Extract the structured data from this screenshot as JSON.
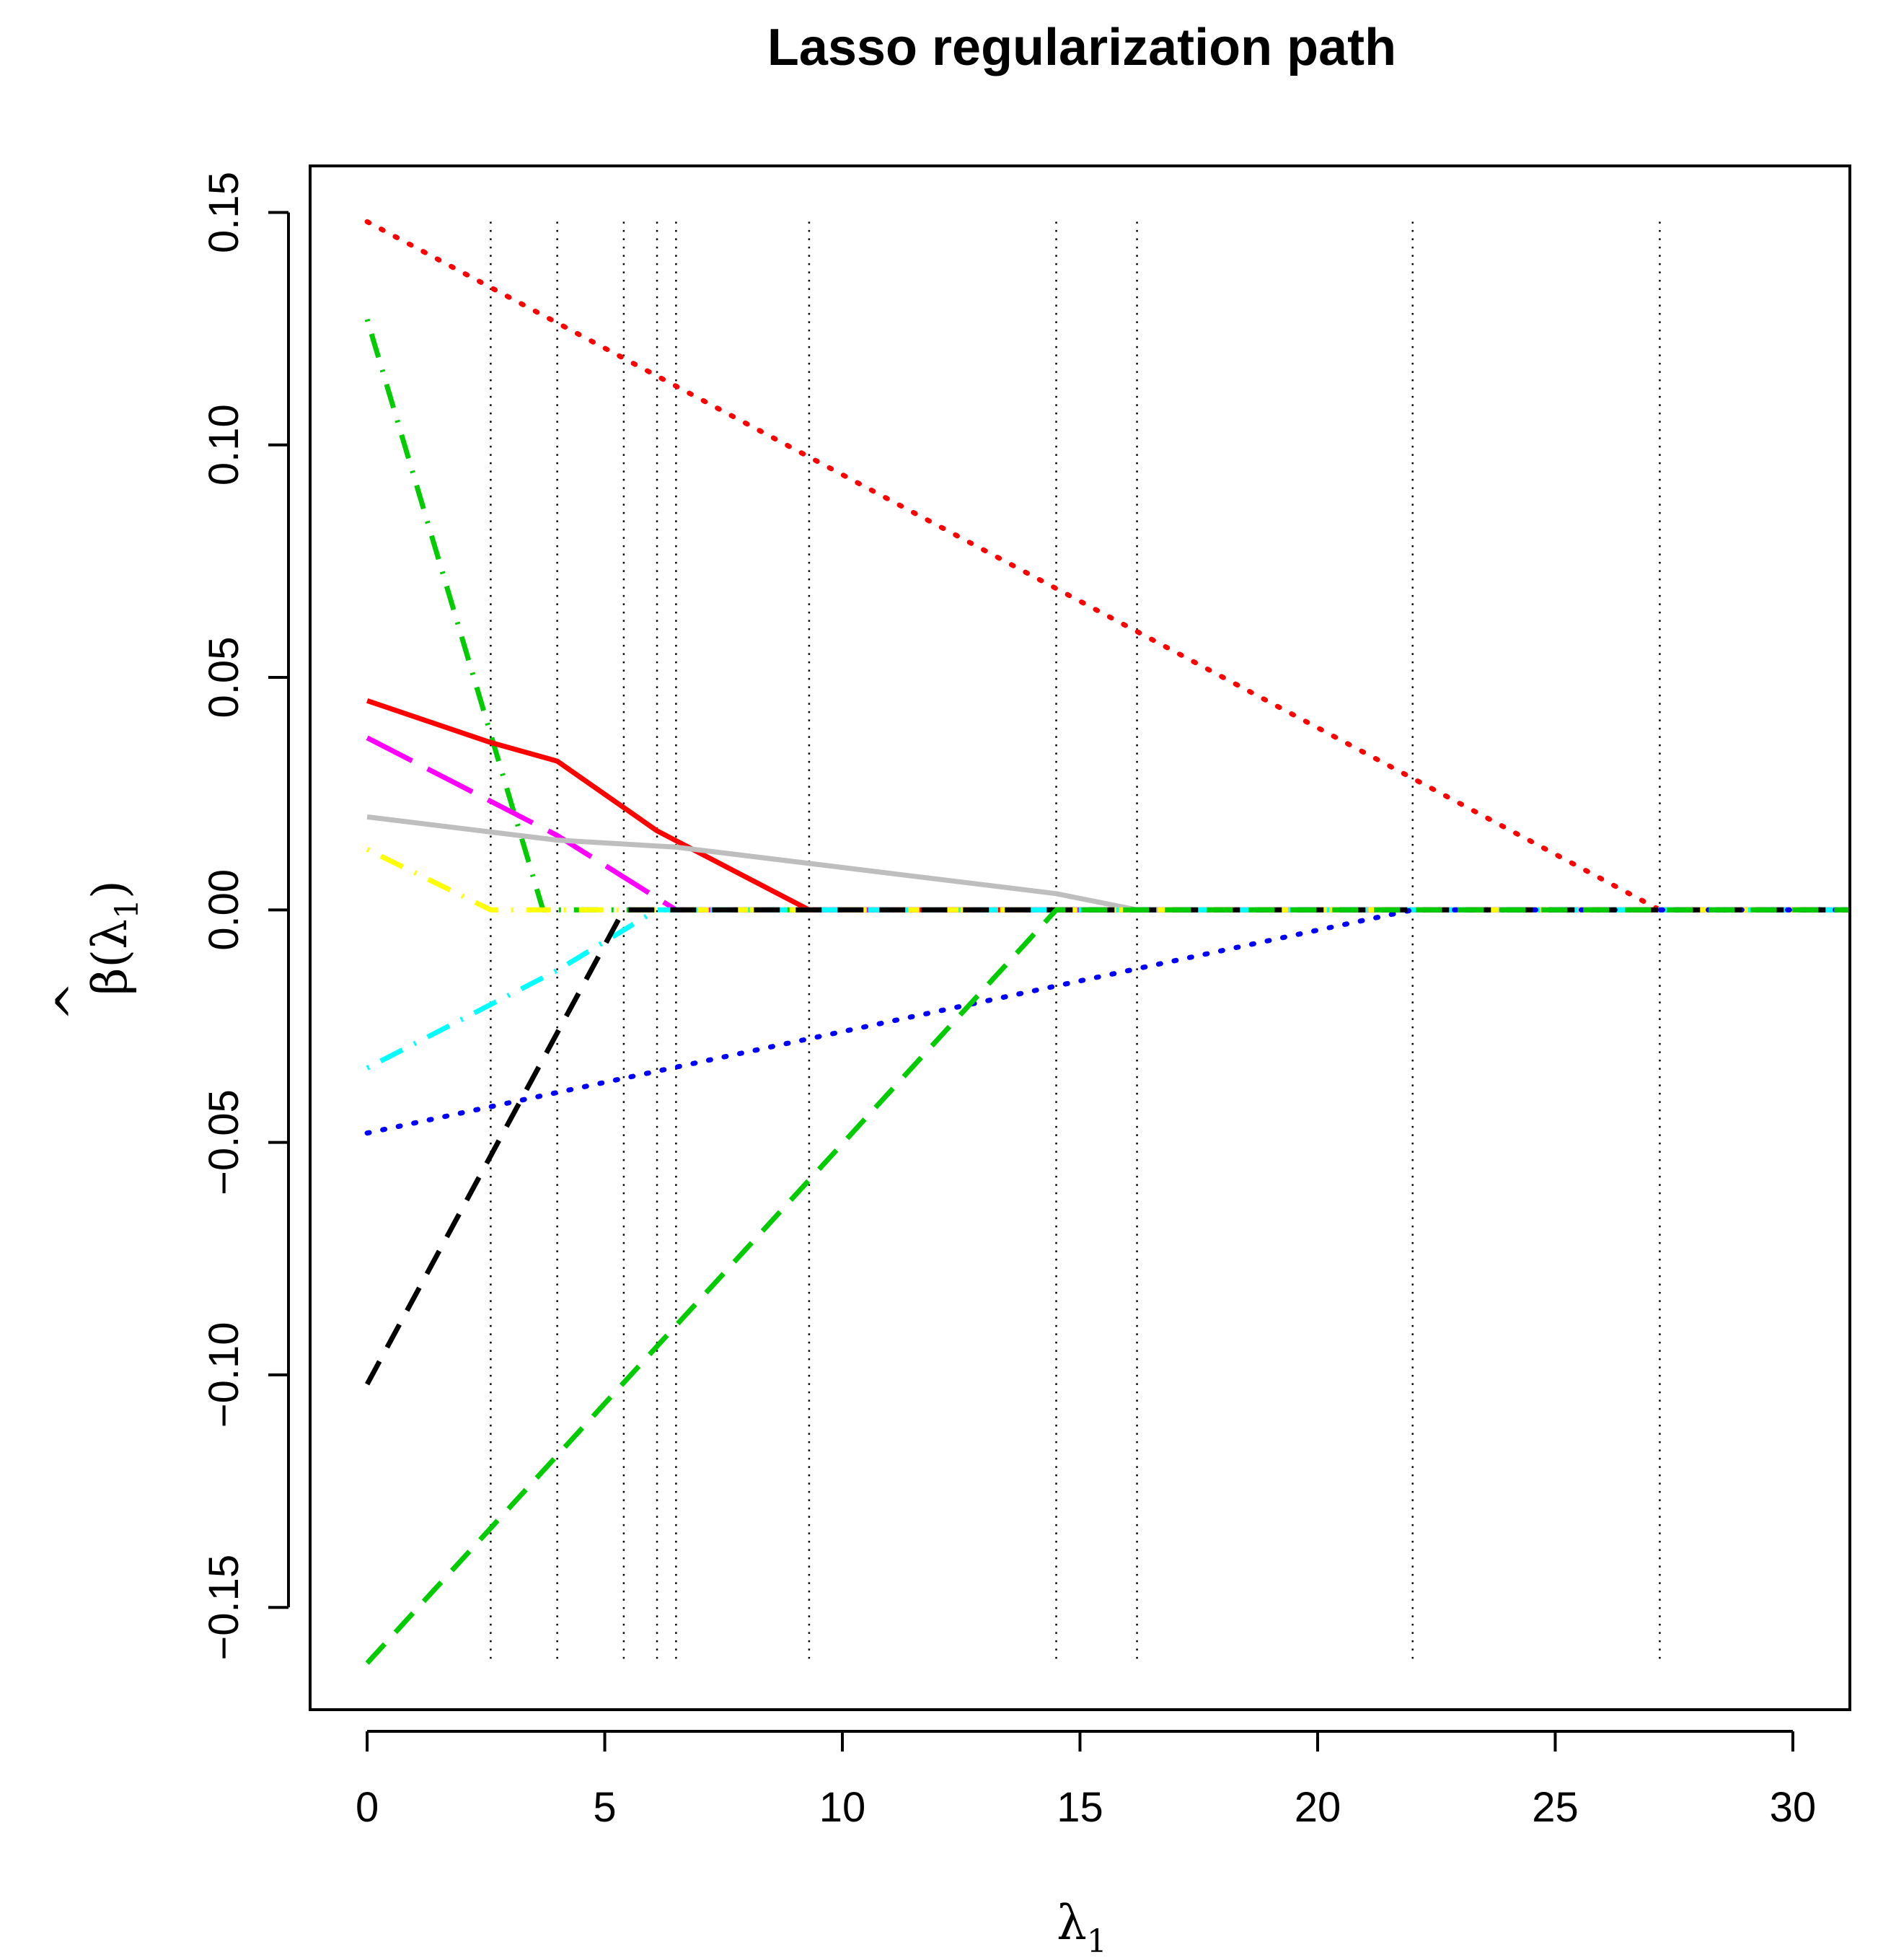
{
  "chart_data": {
    "type": "line",
    "title": "Lasso regularization path",
    "xlabel": {
      "main": "λ",
      "subscript": "1"
    },
    "ylabel": {
      "hat": "^",
      "main": "β(λ",
      "subscript": "1",
      "close": ")"
    },
    "xlim": [
      -1.2,
      31.2
    ],
    "ylim": [
      -0.172,
      0.16
    ],
    "x_ticks": [
      0,
      5,
      10,
      15,
      20,
      25,
      30
    ],
    "y_ticks": [
      -0.15,
      -0.1,
      -0.05,
      0.0,
      0.05,
      0.1,
      0.15
    ],
    "x_tick_labels": [
      "0",
      "5",
      "10",
      "15",
      "20",
      "25",
      "30"
    ],
    "y_tick_labels": [
      "−0.15",
      "−0.10",
      "−0.05",
      "0.00",
      "0.05",
      "0.10",
      "0.15"
    ],
    "grid": false,
    "legend": "none",
    "vertical_lines": [
      2.6,
      4.0,
      5.4,
      6.1,
      6.5,
      9.3,
      14.5,
      16.2,
      22.0,
      27.2
    ],
    "series": [
      {
        "color": "#ff0000",
        "dash": "dotted",
        "points": [
          [
            0,
            0.148
          ],
          [
            27.2,
            0.0
          ],
          [
            31.2,
            0.0
          ]
        ]
      },
      {
        "color": "#00cc00",
        "dash": "dashdot",
        "points": [
          [
            0,
            0.127
          ],
          [
            3.7,
            0.0
          ],
          [
            31.2,
            0.0
          ]
        ]
      },
      {
        "color": "#ff0000",
        "dash": "solid",
        "points": [
          [
            0,
            0.045
          ],
          [
            2.6,
            0.036
          ],
          [
            4.0,
            0.032
          ],
          [
            5.4,
            0.022
          ],
          [
            6.1,
            0.017
          ],
          [
            9.3,
            0.0
          ],
          [
            31.2,
            0.0
          ]
        ]
      },
      {
        "color": "#ff00ff",
        "dash": "longdash",
        "points": [
          [
            0,
            0.037
          ],
          [
            4.0,
            0.016
          ],
          [
            6.5,
            0.0
          ],
          [
            31.2,
            0.0
          ]
        ]
      },
      {
        "color": "#bebebe",
        "dash": "solid",
        "points": [
          [
            0,
            0.02
          ],
          [
            4.0,
            0.015
          ],
          [
            6.5,
            0.0135
          ],
          [
            14.5,
            0.0035
          ],
          [
            16.2,
            0.0
          ],
          [
            31.2,
            0.0
          ]
        ]
      },
      {
        "color": "#ffff00",
        "dash": "dashdot",
        "points": [
          [
            0,
            0.013
          ],
          [
            2.6,
            0.0
          ],
          [
            31.2,
            0.0
          ]
        ]
      },
      {
        "color": "#00ffff",
        "dash": "dashdot",
        "points": [
          [
            0,
            -0.034
          ],
          [
            4.0,
            -0.013
          ],
          [
            6.1,
            0.0
          ],
          [
            31.2,
            0.0
          ]
        ]
      },
      {
        "color": "#0000ff",
        "dash": "dotted",
        "points": [
          [
            0,
            -0.048
          ],
          [
            22.0,
            0.0
          ],
          [
            31.2,
            0.0
          ]
        ]
      },
      {
        "color": "#000000",
        "dash": "dashed",
        "points": [
          [
            0,
            -0.102
          ],
          [
            5.4,
            0.0
          ],
          [
            31.2,
            0.0
          ]
        ]
      },
      {
        "color": "#00cc00",
        "dash": "dashed",
        "points": [
          [
            0,
            -0.162
          ],
          [
            14.5,
            0.0
          ],
          [
            31.2,
            0.0
          ]
        ]
      }
    ]
  }
}
